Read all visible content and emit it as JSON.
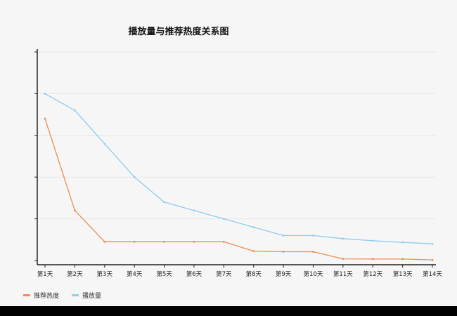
{
  "chart_data": {
    "type": "line",
    "title": "播放量与推荐热度关系图",
    "categories": [
      "第1天",
      "第2天",
      "第3天",
      "第4天",
      "第5天",
      "第6天",
      "第7天",
      "第8天",
      "第9天",
      "第10天",
      "第11天",
      "第12天",
      "第13天",
      "第14天"
    ],
    "series": [
      {
        "name": "推荐热度",
        "color": "#f28a52",
        "values": [
          68,
          24,
          9,
          9,
          9,
          9,
          9,
          4.5,
          4.2,
          4.2,
          0.8,
          0.7,
          0.7,
          0.3
        ]
      },
      {
        "name": "播放量",
        "color": "#8ecdf2",
        "values": [
          80,
          72,
          56,
          40,
          28,
          24,
          20,
          16,
          12,
          12,
          10.5,
          9.5,
          8.7,
          8
        ]
      }
    ],
    "ylim": [
      0,
      100
    ],
    "grid": true,
    "legend_position": "bottom-left"
  }
}
